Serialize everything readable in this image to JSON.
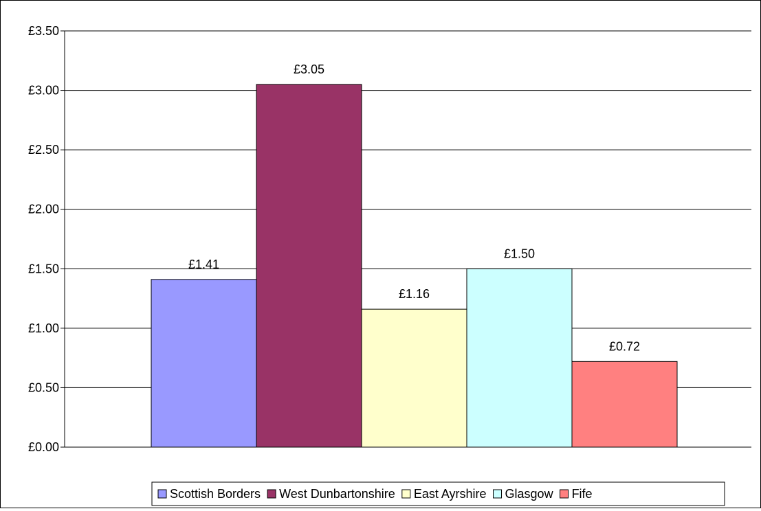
{
  "chart_data": {
    "type": "bar",
    "title": "",
    "xlabel": "",
    "ylabel": "",
    "ylim": [
      0,
      3.5
    ],
    "yticks": [
      0,
      0.5,
      1.0,
      1.5,
      2.0,
      2.5,
      3.0,
      3.5
    ],
    "ytick_labels": [
      "£0.00",
      "£0.50",
      "£1.00",
      "£1.50",
      "£2.00",
      "£2.50",
      "£3.00",
      "£3.50"
    ],
    "grid": true,
    "legend_position": "bottom",
    "series": [
      {
        "name": "Scottish Borders",
        "value": 1.41,
        "label": "£1.41",
        "color": "#9999ff"
      },
      {
        "name": "West Dunbartonshire",
        "value": 3.05,
        "label": "£3.05",
        "color": "#993366"
      },
      {
        "name": "East Ayrshire",
        "value": 1.16,
        "label": "£1.16",
        "color": "#ffffcc"
      },
      {
        "name": "Glasgow",
        "value": 1.5,
        "label": "£1.50",
        "color": "#ccffff"
      },
      {
        "name": "Fife",
        "value": 0.72,
        "label": "£0.72",
        "color": "#ff8080"
      }
    ]
  }
}
